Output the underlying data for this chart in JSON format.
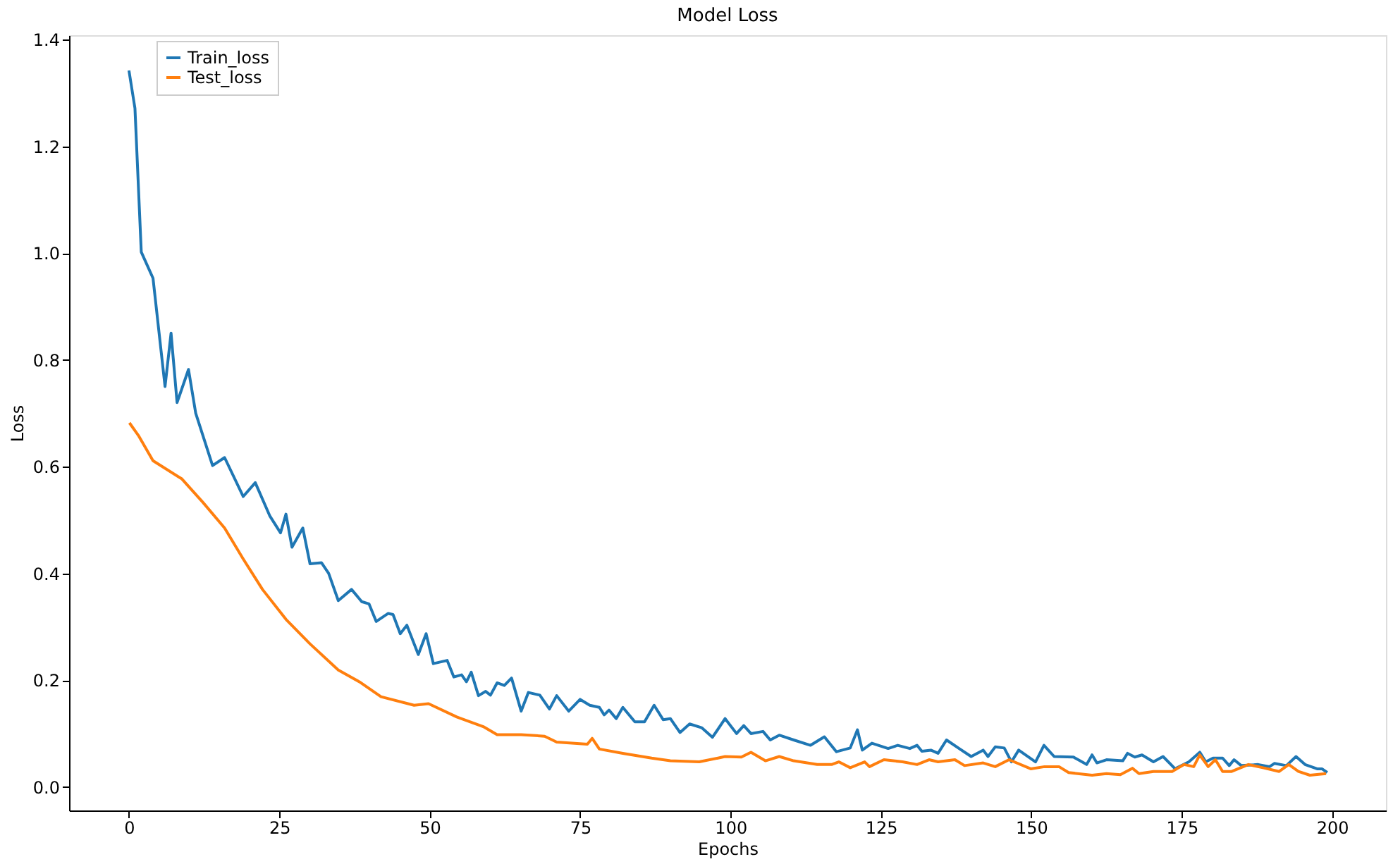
{
  "chart_data": {
    "type": "line",
    "title": "Model Loss",
    "xlabel": "Epochs",
    "ylabel": "Loss",
    "xlim": [
      -9.95,
      208.95
    ],
    "ylim": [
      -0.044,
      1.408
    ],
    "xticks": [
      0,
      25,
      50,
      75,
      100,
      125,
      150,
      175,
      200
    ],
    "yticks": [
      {
        "value": 0,
        "label": "0.0"
      },
      {
        "value": 0.2,
        "label": "0.2"
      },
      {
        "value": 0.4,
        "label": "0.4"
      },
      {
        "value": 0.6,
        "label": "0.6"
      },
      {
        "value": 0.8,
        "label": "0.8"
      },
      {
        "value": 1.0,
        "label": "1.0"
      },
      {
        "value": 1.2,
        "label": "1.2"
      },
      {
        "value": 1.4,
        "label": "1.4"
      }
    ],
    "grid": false,
    "legend": "top left",
    "marker": "none",
    "line_style": "solid",
    "series": [
      {
        "name": "Train_loss",
        "color": "#1f77b4",
        "x": [
          0,
          1,
          2.05,
          4,
          6,
          7,
          8,
          9.9,
          11.1,
          13.9,
          15.9,
          19,
          21,
          23.4,
          25.2,
          26.1,
          27.1,
          28.9,
          30.1,
          32,
          33.2,
          34.8,
          37,
          38.7,
          39.9,
          41.1,
          43.1,
          43.9,
          45.1,
          46.2,
          48.1,
          49.4,
          50.6,
          52.9,
          54,
          55.3,
          56.1,
          56.9,
          58.1,
          59.3,
          60.1,
          61.2,
          62.4,
          63.6,
          65.2,
          66.4,
          68.3,
          69.9,
          71.1,
          73.1,
          75,
          76.6,
          78.2,
          79,
          79.8,
          81,
          82.1,
          84.1,
          85.7,
          87.3,
          88.8,
          90,
          91.6,
          93.2,
          95.2,
          97,
          99.1,
          101,
          102.2,
          103.4,
          105.4,
          106.6,
          108.1,
          110.5,
          113.3,
          115.6,
          117.6,
          119.9,
          121.1,
          121.9,
          123.5,
          126.2,
          127.8,
          129.8,
          131,
          131.8,
          133.3,
          134.5,
          135.9,
          138,
          140,
          142,
          142.8,
          144,
          145.5,
          146.7,
          147.9,
          150.7,
          152.1,
          153.8,
          157,
          159.2,
          160.1,
          160.9,
          162.5,
          165.2,
          166,
          167.2,
          168.4,
          170.3,
          171.9,
          173.9,
          176.2,
          178,
          179,
          180.2,
          181.8,
          182.9,
          183.7,
          184.9,
          187.7,
          189.6,
          190.4,
          192.4,
          194,
          195.5,
          197.5,
          198.3,
          199.2
        ],
        "values": [
          1.342,
          1.271,
          1.002,
          0.953,
          0.75,
          0.85,
          0.72,
          0.782,
          0.7,
          0.602,
          0.617,
          0.544,
          0.57,
          0.508,
          0.476,
          0.511,
          0.449,
          0.485,
          0.418,
          0.42,
          0.4,
          0.349,
          0.37,
          0.347,
          0.343,
          0.31,
          0.325,
          0.323,
          0.287,
          0.303,
          0.248,
          0.287,
          0.231,
          0.237,
          0.206,
          0.21,
          0.197,
          0.215,
          0.171,
          0.179,
          0.172,
          0.195,
          0.19,
          0.204,
          0.142,
          0.177,
          0.172,
          0.146,
          0.171,
          0.142,
          0.164,
          0.153,
          0.149,
          0.135,
          0.144,
          0.128,
          0.149,
          0.122,
          0.122,
          0.153,
          0.126,
          0.128,
          0.102,
          0.118,
          0.111,
          0.093,
          0.128,
          0.1,
          0.115,
          0.1,
          0.104,
          0.088,
          0.097,
          0.088,
          0.078,
          0.094,
          0.066,
          0.073,
          0.107,
          0.069,
          0.082,
          0.072,
          0.078,
          0.072,
          0.078,
          0.067,
          0.069,
          0.063,
          0.088,
          0.072,
          0.057,
          0.069,
          0.057,
          0.075,
          0.073,
          0.047,
          0.069,
          0.047,
          0.078,
          0.057,
          0.056,
          0.042,
          0.06,
          0.045,
          0.051,
          0.049,
          0.063,
          0.056,
          0.06,
          0.047,
          0.057,
          0.034,
          0.047,
          0.065,
          0.047,
          0.054,
          0.054,
          0.04,
          0.051,
          0.04,
          0.042,
          0.038,
          0.044,
          0.04,
          0.057,
          0.042,
          0.034,
          0.034,
          0.027
        ]
      },
      {
        "name": "Test_loss",
        "color": "#ff7f0e",
        "x": [
          0.08,
          1.65,
          4,
          8.8,
          12.3,
          15.9,
          19,
          22.2,
          26.1,
          30.1,
          34.8,
          38.3,
          41.9,
          47.4,
          49.8,
          54.5,
          58.9,
          61.2,
          65.2,
          69.1,
          71.1,
          76.2,
          77,
          78.2,
          82.1,
          86.9,
          90,
          94.8,
          97.9,
          99.1,
          101.8,
          103.4,
          105.8,
          108.1,
          110.5,
          114.4,
          116.8,
          118,
          119.9,
          122.3,
          123.1,
          125.5,
          128.6,
          131,
          133,
          134.5,
          137.3,
          138.9,
          142,
          144,
          146.3,
          149.9,
          152.2,
          154.6,
          156.2,
          160.1,
          162.5,
          164.8,
          166.8,
          167.9,
          170.3,
          173.4,
          175.4,
          177,
          178,
          179.4,
          180.6,
          181.8,
          183.3,
          186.1,
          188.5,
          191.2,
          192.8,
          194.4,
          196.3,
          199
        ],
        "values": [
          0.682,
          0.657,
          0.611,
          0.577,
          0.533,
          0.485,
          0.427,
          0.37,
          0.314,
          0.268,
          0.219,
          0.197,
          0.169,
          0.153,
          0.156,
          0.131,
          0.113,
          0.098,
          0.098,
          0.095,
          0.084,
          0.08,
          0.091,
          0.071,
          0.063,
          0.054,
          0.049,
          0.047,
          0.054,
          0.057,
          0.056,
          0.065,
          0.049,
          0.057,
          0.049,
          0.042,
          0.042,
          0.047,
          0.036,
          0.047,
          0.038,
          0.051,
          0.047,
          0.042,
          0.051,
          0.047,
          0.051,
          0.04,
          0.045,
          0.038,
          0.051,
          0.034,
          0.038,
          0.038,
          0.027,
          0.022,
          0.025,
          0.023,
          0.035,
          0.025,
          0.029,
          0.029,
          0.042,
          0.038,
          0.06,
          0.038,
          0.051,
          0.029,
          0.029,
          0.042,
          0.036,
          0.029,
          0.042,
          0.029,
          0.022,
          0.025
        ]
      }
    ]
  }
}
